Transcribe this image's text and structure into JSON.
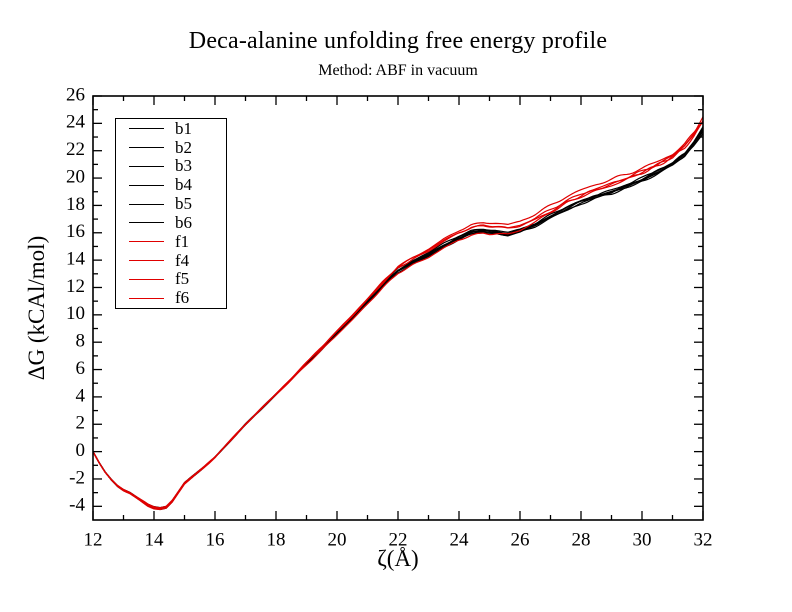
{
  "chart_data": {
    "type": "line",
    "title": "Deca-alanine unfolding free energy profile",
    "subtitle": "Method: ABF in vacuum",
    "xlabel": "ζ(Å)",
    "ylabel": "ΔG (kCAl/mol)",
    "xlim": [
      12,
      32
    ],
    "ylim": [
      -5,
      26
    ],
    "x_major_ticks": [
      12,
      14,
      16,
      18,
      20,
      22,
      24,
      26,
      28,
      30,
      32
    ],
    "x_minor_ticks": [
      13,
      15,
      17,
      19,
      21,
      23,
      25,
      27,
      29,
      31
    ],
    "y_major_ticks": [
      -4,
      -2,
      0,
      2,
      4,
      6,
      8,
      10,
      12,
      14,
      16,
      18,
      20,
      22,
      24,
      26
    ],
    "y_minor_ticks": [
      -3,
      -1,
      1,
      3,
      5,
      7,
      9,
      11,
      13,
      15,
      17,
      19,
      21,
      23,
      25
    ],
    "grid": false,
    "legend_position": "upper-left-inside",
    "colors": {
      "background": "#ffffff",
      "frame": "#000000",
      "b_series": "#000000",
      "f_series": "#e00000"
    },
    "base_curve": {
      "x": [
        12.0,
        12.2,
        12.4,
        12.6,
        12.8,
        13.0,
        13.2,
        13.4,
        13.6,
        13.8,
        14.0,
        14.2,
        14.4,
        14.6,
        14.8,
        15.0,
        15.3,
        15.6,
        16.0,
        16.5,
        17.0,
        17.5,
        18.0,
        18.5,
        19.0,
        19.5,
        20.0,
        20.5,
        21.0,
        21.5,
        22.0,
        22.5,
        23.0,
        23.5,
        24.0,
        24.4,
        24.8,
        25.2,
        25.6,
        26.0,
        26.5,
        27.0,
        27.5,
        28.0,
        28.5,
        29.0,
        29.5,
        30.0,
        30.5,
        31.0,
        31.4,
        31.7,
        32.0
      ],
      "y": [
        0.0,
        -0.8,
        -1.5,
        -2.05,
        -2.5,
        -2.8,
        -3.0,
        -3.3,
        -3.6,
        -3.9,
        -4.08,
        -4.15,
        -4.05,
        -3.6,
        -2.95,
        -2.3,
        -1.75,
        -1.2,
        -0.4,
        0.8,
        2.0,
        3.1,
        4.2,
        5.3,
        6.45,
        7.55,
        8.7,
        9.8,
        11.0,
        12.2,
        13.3,
        13.95,
        14.5,
        15.2,
        15.8,
        16.15,
        16.3,
        16.25,
        16.1,
        16.3,
        16.8,
        17.4,
        18.0,
        18.5,
        18.9,
        19.25,
        19.7,
        20.15,
        20.7,
        21.3,
        22.0,
        22.8,
        23.8
      ]
    },
    "offset_x": [
      12,
      14,
      18,
      21,
      23,
      25,
      27,
      29,
      31,
      32
    ],
    "series": [
      {
        "name": "b1",
        "color": "#000000",
        "offsets": [
          0,
          -0.05,
          -0.02,
          -0.1,
          -0.2,
          -0.25,
          -0.3,
          -0.35,
          -0.3,
          -0.2
        ]
      },
      {
        "name": "b2",
        "color": "#000000",
        "offsets": [
          0,
          0.03,
          0.02,
          -0.05,
          -0.1,
          -0.15,
          -0.25,
          -0.2,
          -0.15,
          -0.3
        ]
      },
      {
        "name": "b3",
        "color": "#000000",
        "offsets": [
          0,
          -0.02,
          0.0,
          0.05,
          -0.05,
          -0.1,
          -0.15,
          -0.3,
          -0.4,
          -0.45
        ]
      },
      {
        "name": "b4",
        "color": "#000000",
        "offsets": [
          0,
          0.05,
          -0.03,
          -0.15,
          -0.25,
          -0.3,
          -0.2,
          -0.15,
          -0.25,
          -0.1
        ]
      },
      {
        "name": "b5",
        "color": "#000000",
        "offsets": [
          0,
          -0.08,
          0.03,
          0.0,
          -0.15,
          -0.2,
          -0.35,
          -0.4,
          -0.2,
          -0.35
        ]
      },
      {
        "name": "b6",
        "color": "#000000",
        "offsets": [
          0,
          0.0,
          -0.05,
          0.1,
          0.05,
          -0.05,
          -0.1,
          -0.25,
          -0.35,
          -0.25
        ]
      },
      {
        "name": "f1",
        "color": "#e00000",
        "offsets": [
          0,
          0.02,
          0.03,
          0.15,
          0.3,
          0.45,
          0.6,
          0.65,
          0.45,
          0.5
        ]
      },
      {
        "name": "f4",
        "color": "#e00000",
        "offsets": [
          0,
          -0.04,
          0.0,
          0.2,
          0.25,
          0.2,
          0.3,
          0.35,
          0.3,
          0.6
        ]
      },
      {
        "name": "f5",
        "color": "#e00000",
        "offsets": [
          0,
          0.06,
          -0.04,
          -0.2,
          -0.3,
          -0.35,
          0.1,
          0.2,
          0.25,
          0.4
        ]
      },
      {
        "name": "f6",
        "color": "#e00000",
        "offsets": [
          0,
          -0.1,
          0.02,
          0.1,
          0.15,
          0.25,
          0.15,
          0.3,
          0.2,
          0.3
        ]
      }
    ]
  }
}
